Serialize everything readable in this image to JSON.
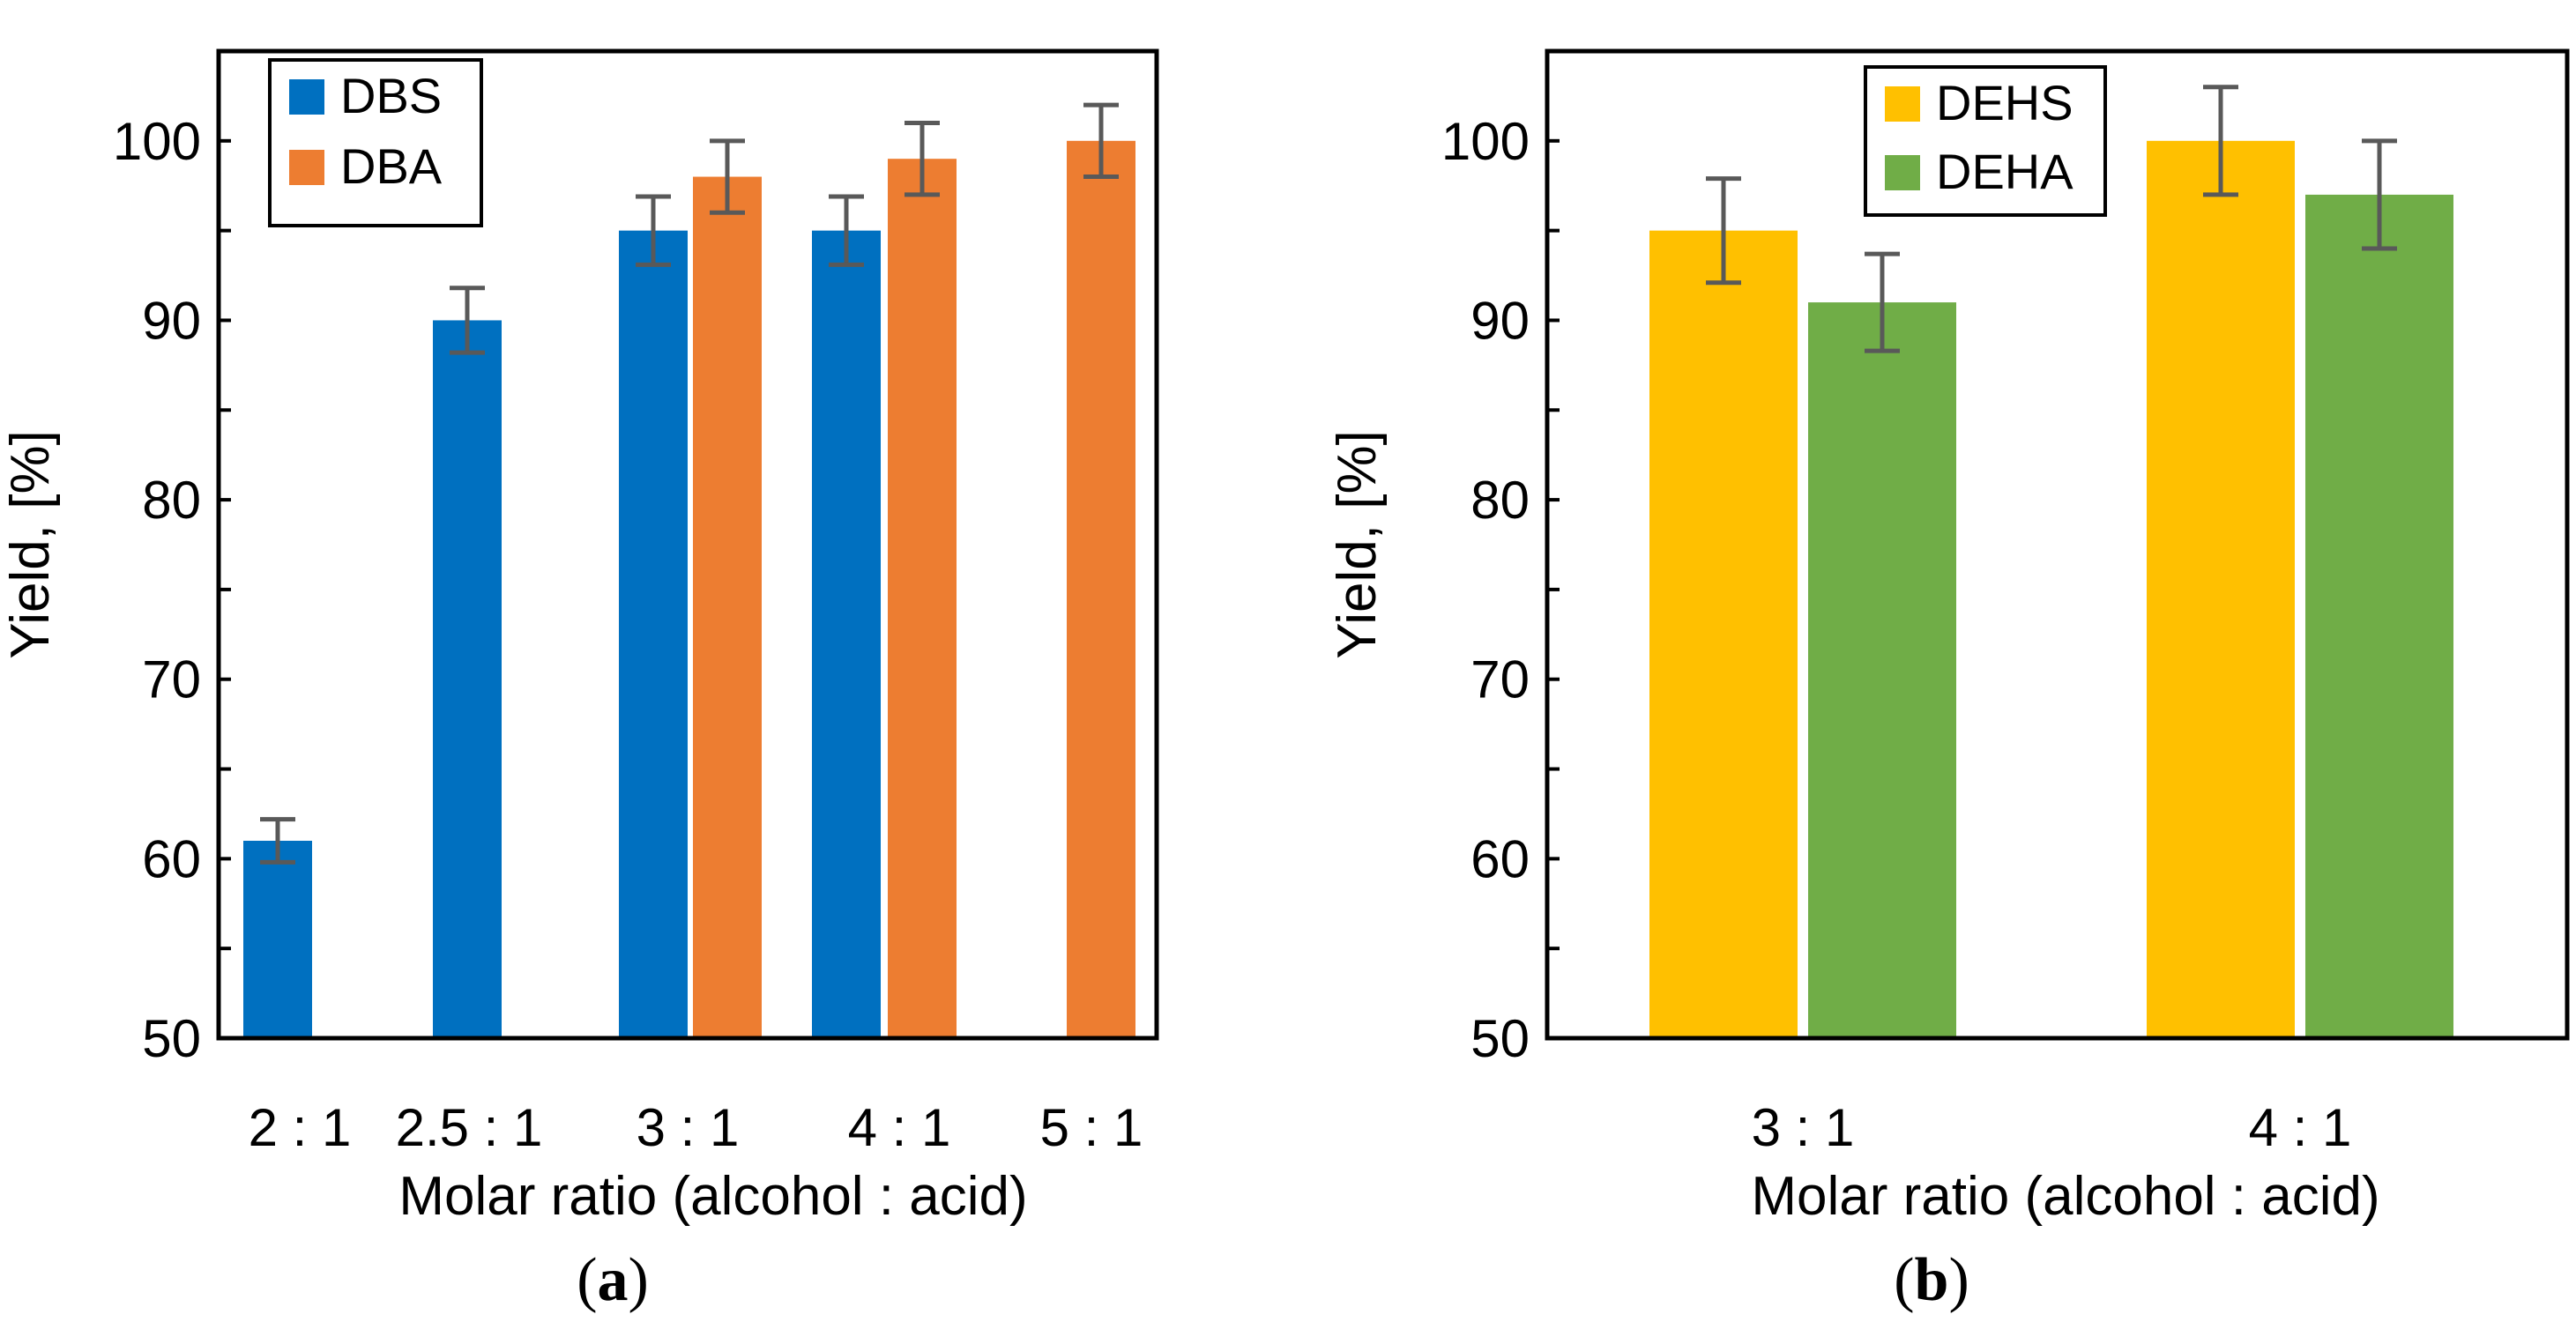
{
  "chart_data": [
    {
      "type": "bar",
      "title": "",
      "panel_label_open": "(",
      "panel_label_letter": "a",
      "panel_label_close": ")",
      "xlabel": "Molar ratio (alcohol : acid)",
      "ylabel": "Yield, [%]",
      "ylim": [
        50,
        105
      ],
      "yticks": [
        50,
        60,
        70,
        80,
        90,
        100
      ],
      "categories": [
        "2 : 1",
        "2.5 : 1",
        "3 : 1",
        "4 : 1",
        "5 : 1"
      ],
      "legend_position": "top-left",
      "grid": false,
      "series": [
        {
          "name": "DBS",
          "color": "#0070C0",
          "values": [
            61,
            90,
            95,
            95,
            null
          ],
          "errors": [
            1.2,
            1.8,
            1.9,
            1.9,
            null
          ]
        },
        {
          "name": "DBA",
          "color": "#ED7D31",
          "values": [
            null,
            null,
            98,
            99,
            100
          ],
          "errors": [
            null,
            null,
            2.0,
            2.0,
            2.0
          ]
        }
      ]
    },
    {
      "type": "bar",
      "title": "",
      "panel_label_open": "(",
      "panel_label_letter": "b",
      "panel_label_close": ")",
      "xlabel": "Molar ratio (alcohol : acid)",
      "ylabel": "Yield, [%]",
      "ylim": [
        50,
        105
      ],
      "yticks": [
        50,
        60,
        70,
        80,
        90,
        100
      ],
      "categories": [
        "3 : 1",
        "4 : 1"
      ],
      "legend_position": "top-center",
      "grid": false,
      "series": [
        {
          "name": "DEHS",
          "color": "#FFC000",
          "values": [
            95,
            100
          ],
          "errors": [
            2.9,
            3.0
          ]
        },
        {
          "name": "DEHA",
          "color": "#70AD47",
          "values": [
            91,
            97
          ],
          "errors": [
            2.7,
            3.0
          ]
        }
      ]
    }
  ]
}
